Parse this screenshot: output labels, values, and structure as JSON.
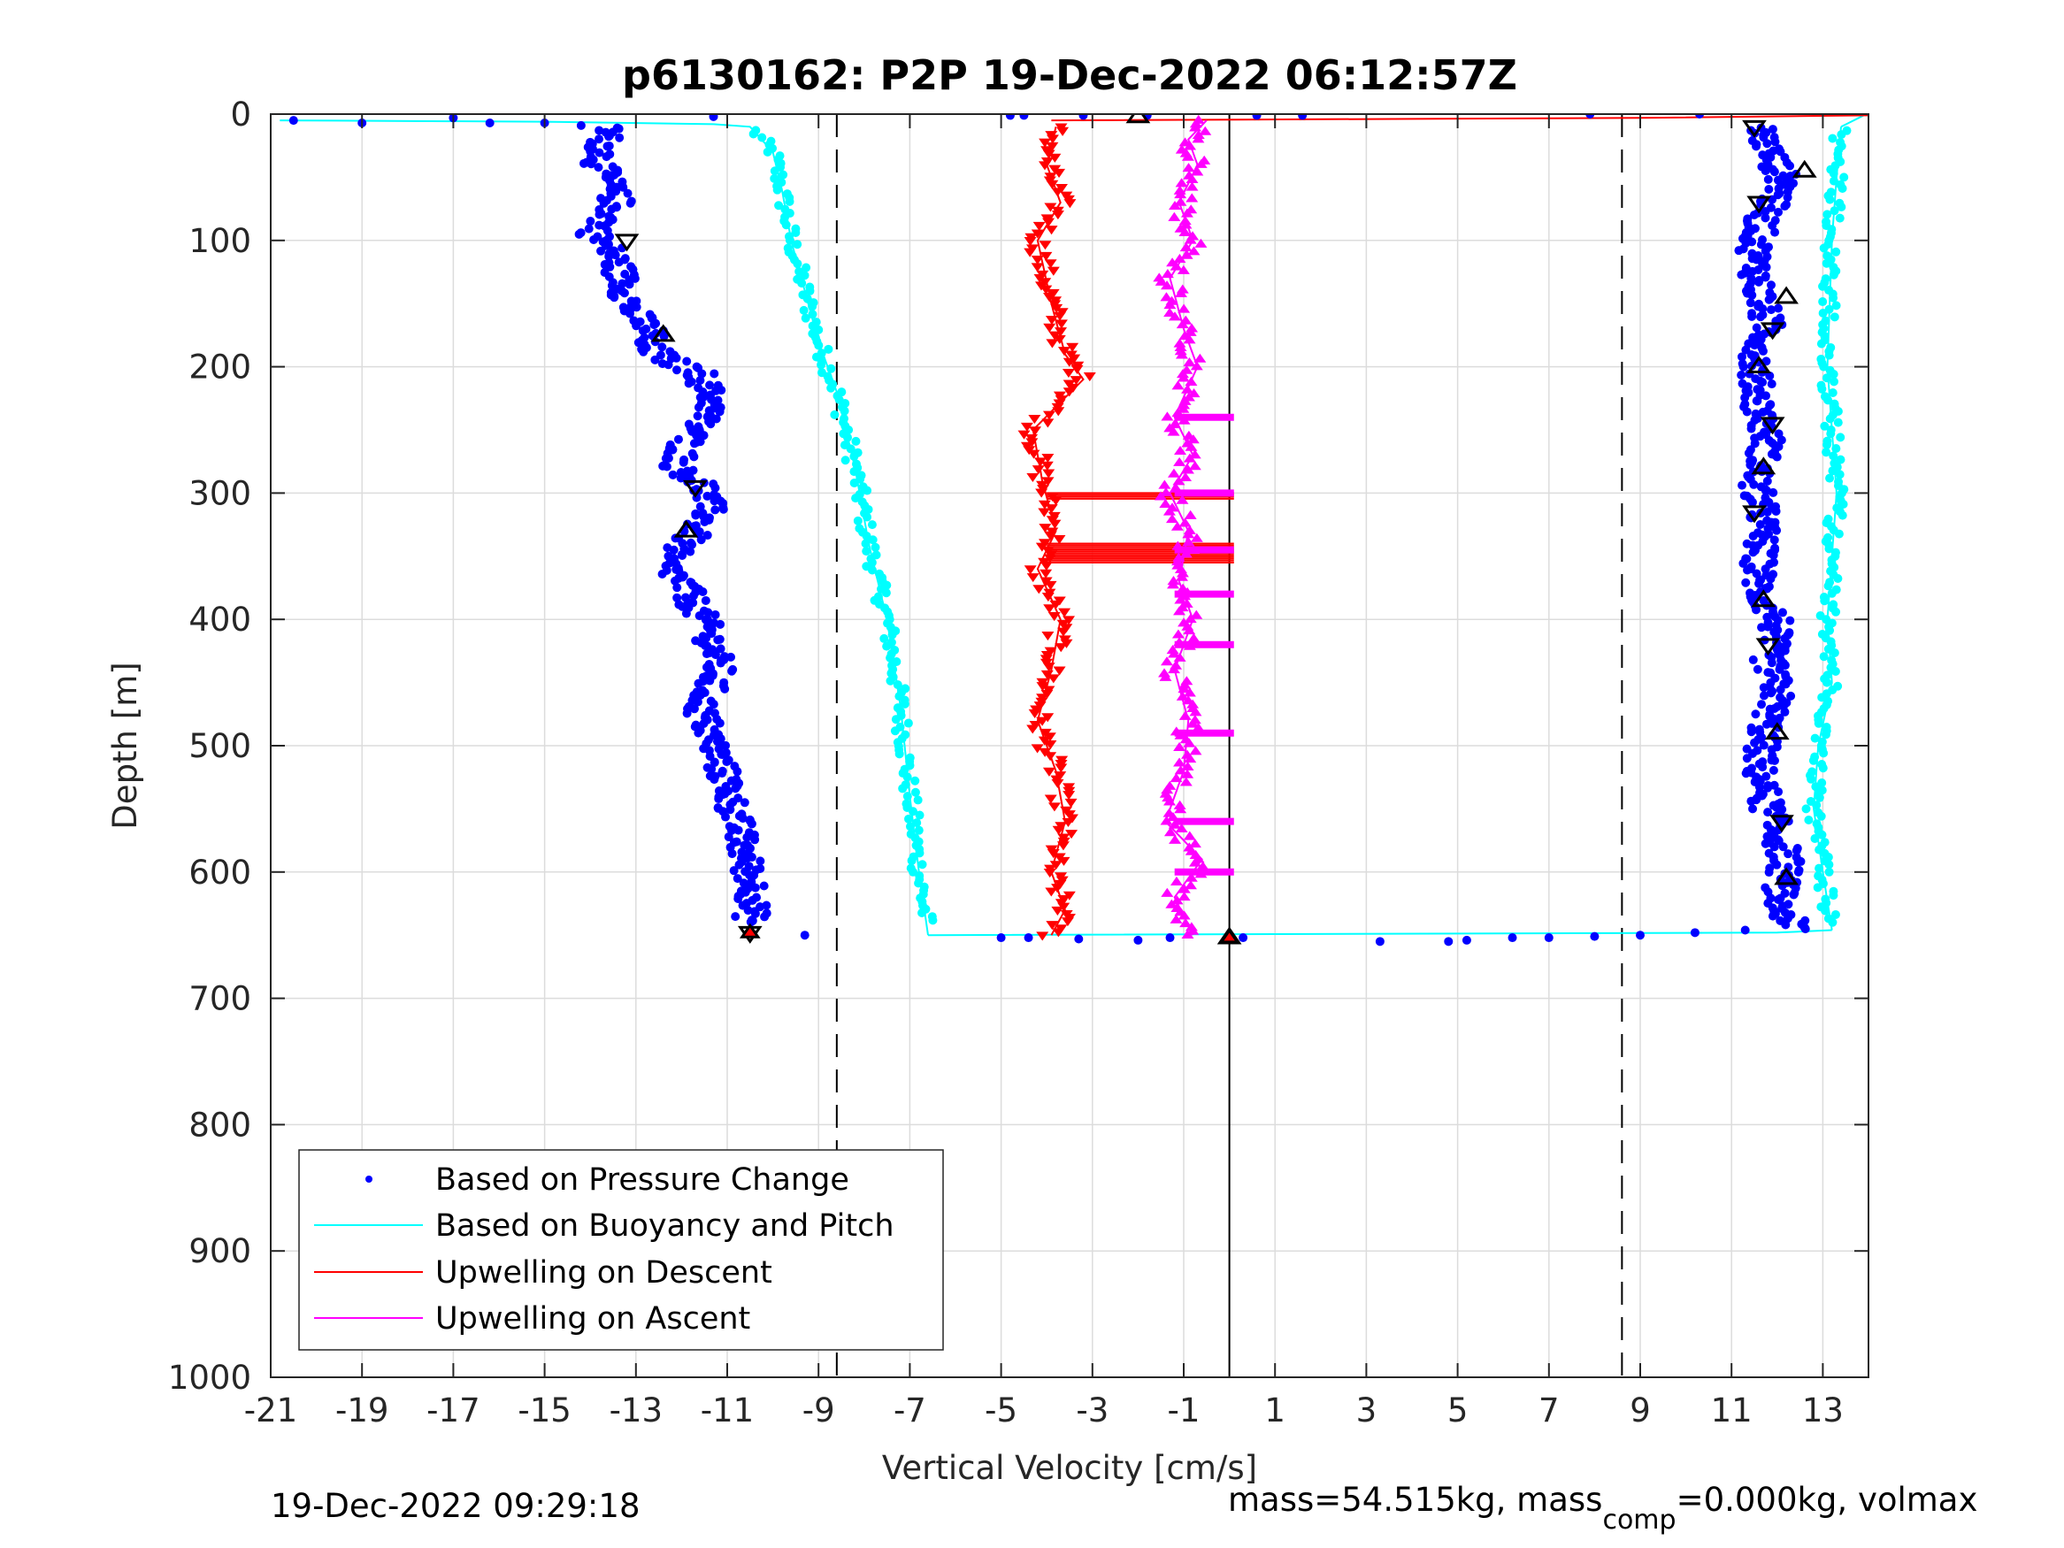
{
  "chart_data": {
    "type": "scatter",
    "title": "p6130162: P2P 19-Dec-2022 06:12:57Z",
    "xlabel": "Vertical Velocity [cm/s]",
    "ylabel": "Depth [m]",
    "xlim": [
      -21,
      14
    ],
    "ylim": [
      0,
      1000
    ],
    "y_reversed": true,
    "grid": true,
    "xticks": [
      -21,
      -19,
      -17,
      -15,
      -13,
      -11,
      -9,
      -7,
      -5,
      -3,
      -1,
      1,
      3,
      5,
      7,
      9,
      11,
      13
    ],
    "yticks": [
      0,
      100,
      200,
      300,
      400,
      500,
      600,
      700,
      800,
      900,
      1000
    ],
    "xtick_labels": [
      "-21",
      "-19",
      "-17",
      "-15",
      "-13",
      "-11",
      "-9",
      "-7",
      "-5",
      "-3",
      "-1",
      "1",
      "3",
      "5",
      "7",
      "9",
      "11",
      "13"
    ],
    "ytick_labels": [
      "0",
      "100",
      "200",
      "300",
      "400",
      "500",
      "600",
      "700",
      "800",
      "900",
      "1000"
    ],
    "reference_lines": [
      {
        "x": -8.6,
        "style": "dashed"
      },
      {
        "x": 8.6,
        "style": "dashed"
      },
      {
        "x": 0,
        "style": "solid"
      }
    ],
    "legend_position": "bottom-left",
    "legend": [
      {
        "label": "Based on Pressure Change",
        "color": "#0000ff",
        "marker": "dot"
      },
      {
        "label": "Based on Buoyancy and Pitch",
        "color": "#00ffff",
        "marker": "line"
      },
      {
        "label": "Upwelling on Descent",
        "color": "#ff0000",
        "marker": "line"
      },
      {
        "label": "Upwelling on Ascent",
        "color": "#ff00ff",
        "marker": "line"
      }
    ],
    "series": [
      {
        "name": "Based on Pressure Change",
        "color": "#0000ff",
        "segments": [
          {
            "x": [
              -13.6,
              -13.8,
              -13.4,
              -13.9,
              -13.5,
              -13.3,
              -13.1,
              -12.6,
              -12.9,
              -12.3,
              -11.6,
              -11.3,
              -11.9,
              -12.1,
              -11.5,
              -11.4,
              -11.8,
              -12.4,
              -12.0,
              -11.7,
              -11.4,
              -11.2,
              -11.6,
              -11.3,
              -11.0,
              -10.8,
              -10.6,
              -10.4,
              -10.5
            ],
            "y": [
              10,
              40,
              70,
              95,
              110,
              130,
              155,
              175,
              180,
              195,
              205,
              230,
              260,
              280,
              295,
              315,
              335,
              355,
              370,
              390,
              410,
              440,
              470,
              500,
              530,
              560,
              590,
              615,
              640
            ]
          },
          {
            "x": [
              11.6,
              11.9,
              12.2,
              11.7,
              11.5,
              11.6,
              11.8,
              11.5,
              11.6,
              11.8,
              11.5,
              11.7,
              11.6,
              11.6,
              12.0,
              11.8,
              12.0,
              11.7,
              11.6,
              11.8,
              12.0,
              12.2,
              12.1,
              12.0,
              12.2,
              12.3,
              12.4
            ],
            "y": [
              10,
              35,
              55,
              80,
              110,
              140,
              170,
              200,
              230,
              260,
              290,
              320,
              350,
              380,
              400,
              430,
              460,
              490,
              520,
              550,
              570,
              590,
              610,
              625,
              635,
              642,
              645
            ]
          }
        ],
        "outliers": [
          {
            "x": -20.5,
            "y": 5
          },
          {
            "x": -19.0,
            "y": 7
          },
          {
            "x": -17.0,
            "y": 3
          },
          {
            "x": -16.2,
            "y": 7
          },
          {
            "x": -15.0,
            "y": 7
          },
          {
            "x": -14.2,
            "y": 9
          },
          {
            "x": -11.3,
            "y": 2
          },
          {
            "x": -4.8,
            "y": 1
          },
          {
            "x": -4.5,
            "y": 1
          },
          {
            "x": -3.2,
            "y": 1
          },
          {
            "x": -1.8,
            "y": 1
          },
          {
            "x": 0.6,
            "y": 1
          },
          {
            "x": 1.6,
            "y": 1
          },
          {
            "x": 7.9,
            "y": 0
          },
          {
            "x": 10.3,
            "y": 0
          },
          {
            "x": -9.3,
            "y": 650
          },
          {
            "x": -5.0,
            "y": 652
          },
          {
            "x": -4.4,
            "y": 652
          },
          {
            "x": -3.3,
            "y": 653
          },
          {
            "x": -2.0,
            "y": 654
          },
          {
            "x": -1.3,
            "y": 652
          },
          {
            "x": 0.3,
            "y": 652
          },
          {
            "x": 3.3,
            "y": 655
          },
          {
            "x": 4.8,
            "y": 655
          },
          {
            "x": 5.2,
            "y": 654
          },
          {
            "x": 6.2,
            "y": 652
          },
          {
            "x": 7.0,
            "y": 652
          },
          {
            "x": 8.0,
            "y": 651
          },
          {
            "x": 9.0,
            "y": 650
          },
          {
            "x": 10.2,
            "y": 648
          },
          {
            "x": 11.3,
            "y": 646
          }
        ]
      },
      {
        "name": "Based on Buoyancy and Pitch",
        "color": "#00ffff",
        "segments": [
          {
            "x": [
              -20.8,
              -15.0,
              -11.3
            ],
            "y": [
              5,
              6,
              8
            ]
          },
          {
            "x": [
              -11.3,
              -10.5,
              -10.0,
              -9.8,
              -9.6,
              -9.3,
              -9.0,
              -8.6,
              -8.2,
              -7.9,
              -7.5,
              -7.2,
              -7.0,
              -6.8,
              -6.6
            ],
            "y": [
              8,
              10,
              30,
              60,
              100,
              140,
              180,
              220,
              280,
              340,
              400,
              470,
              540,
              600,
              650
            ]
          },
          {
            "x": [
              -6.6,
              12.0,
              13.2
            ],
            "y": [
              650,
              648,
              646
            ]
          },
          {
            "x": [
              13.2,
              13.0,
              12.8,
              12.9,
              13.2,
              13.1,
              13.2,
              13.3,
              13.2,
              13.1,
              13.2,
              13.3,
              13.4
            ],
            "y": [
              646,
              600,
              550,
              500,
              450,
              400,
              350,
              300,
              250,
              200,
              100,
              50,
              10
            ]
          },
          {
            "x": [
              13.4,
              13.9
            ],
            "y": [
              10,
              1
            ]
          }
        ]
      },
      {
        "name": "Upwelling on Descent",
        "color": "#ff0000",
        "marker": "triangle-down",
        "segments": [
          {
            "x": [
              -3.8,
              -4.0,
              -3.7,
              -4.2,
              -3.9,
              -3.6,
              -3.2,
              -4.3,
              -4.1,
              -3.8,
              -4.2,
              -3.7,
              -3.9,
              -4.2,
              -3.8,
              -3.6,
              -3.9,
              -3.6,
              -3.9
            ],
            "y": [
              10,
              40,
              70,
              100,
              150,
              190,
              210,
              250,
              290,
              330,
              360,
              400,
              440,
              480,
              520,
              560,
              600,
              630,
              650
            ]
          },
          {
            "x": [
              -3.9,
              9.0,
              14.0
            ],
            "y": [
              5,
              3,
              1
            ]
          }
        ]
      },
      {
        "name": "Upwelling on Ascent",
        "color": "#ff00ff",
        "marker": "triangle-up",
        "segments": [
          {
            "x": [
              -0.8,
              -1.2,
              -0.6,
              -1.4,
              -1.0,
              -0.9,
              -1.2,
              -0.8,
              -1.1,
              -0.9,
              -1.3,
              -0.8,
              -1.2,
              -0.7,
              -1.0,
              -1.3,
              -0.8,
              -1.1,
              -0.7,
              -0.9,
              -0.5
            ],
            "y": [
              650,
              620,
              590,
              560,
              520,
              480,
              440,
              400,
              370,
              330,
              300,
              270,
              240,
              200,
              170,
              130,
              100,
              70,
              40,
              20,
              5
            ]
          }
        ]
      },
      {
        "name": "",
        "color": "#000000",
        "marker": "triangle-outline",
        "points": [
          {
            "x": -2.0,
            "y": 2
          },
          {
            "x": -13.2,
            "y": 100
          },
          {
            "x": -12.4,
            "y": 175
          },
          {
            "x": -11.7,
            "y": 295
          },
          {
            "x": -11.9,
            "y": 330
          },
          {
            "x": -10.5,
            "y": 648
          },
          {
            "x": 0.0,
            "y": 652
          },
          {
            "x": 11.5,
            "y": 10
          },
          {
            "x": 12.6,
            "y": 45
          },
          {
            "x": 11.6,
            "y": 70
          },
          {
            "x": 12.2,
            "y": 145
          },
          {
            "x": 11.9,
            "y": 170
          },
          {
            "x": 11.6,
            "y": 200
          },
          {
            "x": 11.9,
            "y": 245
          },
          {
            "x": 11.7,
            "y": 280
          },
          {
            "x": 11.5,
            "y": 315
          },
          {
            "x": 11.7,
            "y": 385
          },
          {
            "x": 11.8,
            "y": 420
          },
          {
            "x": 12.0,
            "y": 490
          },
          {
            "x": 12.1,
            "y": 560
          },
          {
            "x": 12.2,
            "y": 605
          }
        ]
      }
    ]
  },
  "footer": {
    "timestamp": "19-Dec-2022 09:29:18",
    "mass_prefix": "mass=54.515kg, mass",
    "mass_subscript": "comp",
    "mass_suffix": "=0.000kg, volmax"
  }
}
